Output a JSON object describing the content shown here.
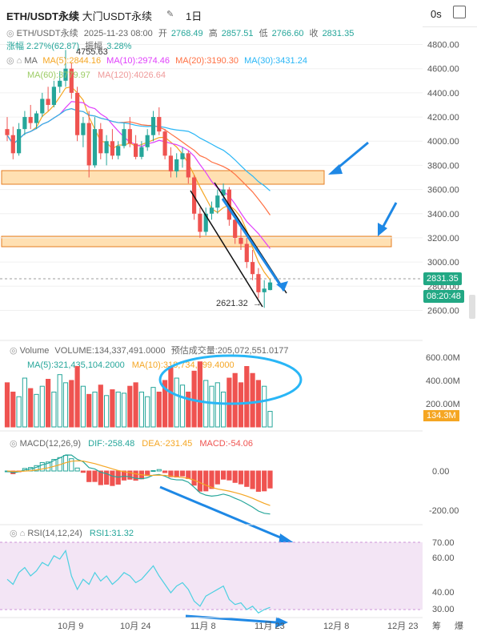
{
  "header": {
    "symbol": "ETH/USDT永续",
    "market": "大门USDT永续",
    "interval": "1日",
    "timer": "0s"
  },
  "ohlc": {
    "symbol": "ETH/USDT永续",
    "date": "2025-11-23 08:00",
    "open_label": "开",
    "open": "2768.49",
    "high_label": "高",
    "high": "2857.51",
    "low_label": "低",
    "low": "2766.60",
    "close_label": "收",
    "close": "2831.35",
    "change": "涨幅 2.27%(62.87)",
    "amplitude_label": "振幅",
    "amplitude": "3.28%"
  },
  "ma_legend": {
    "label": "MA",
    "ma5": "MA(5):2844.16",
    "ma10": "MA(10):2974.46",
    "ma20": "MA(20):3190.30",
    "ma30": "MA(30):3431.24",
    "ma60": "MA(60):3779.97",
    "ma120": "MA(120):4026.64"
  },
  "colors": {
    "up": "#26a69a",
    "down": "#ef5350",
    "ma5": "#f5a623",
    "ma10": "#e040fb",
    "ma20": "#ff7043",
    "ma30": "#29b6f6",
    "ma60": "#9ccc65",
    "ma120": "#ef9a9a",
    "annotation": "#1e88e5",
    "rsi_band": "#f3e5f5",
    "zone": "#ffe0b2"
  },
  "price_axis": {
    "ticks": [
      "4800.00",
      "4600.00",
      "4400.00",
      "4200.00",
      "4000.00",
      "3800.00",
      "3600.00",
      "3400.00",
      "3200.00",
      "3000.00",
      "2800.00",
      "2600.00"
    ],
    "tick_values": [
      4800,
      4600,
      4400,
      4200,
      4000,
      3800,
      3600,
      3400,
      3200,
      3000,
      2800,
      2600
    ],
    "current_price": "2831.35",
    "countdown": "08:20:48",
    "low_marker": "2621.32",
    "high_marker": "4755.63"
  },
  "volume_legend": {
    "label": "Volume",
    "volume": "VOLUME:134,337,491.0000",
    "est": "预估成交量:205,072,551.0177",
    "ma5": "MA(5):321,435,104.2000",
    "ma10": "MA(10):318,734,299.4000",
    "axis": [
      "600.00M",
      "400.00M",
      "200.00M"
    ],
    "current": "134.3M"
  },
  "macd_legend": {
    "label": "MACD(12,26,9)",
    "dif": "DIF:-258.48",
    "dea": "DEA:-231.45",
    "macd": "MACD:-54.06",
    "axis": [
      "0.00",
      "-200.00"
    ]
  },
  "rsi_legend": {
    "label": "RSI(14,12,24)",
    "rsi1": "RSI1:31.32",
    "axis": [
      "70.00",
      "60.00",
      "40.00",
      "30.00"
    ]
  },
  "time_axis": {
    "labels": [
      "10月 9",
      "10月 24",
      "11月 8",
      "11月 23",
      "12月 8",
      "12月 23"
    ],
    "right_labels": [
      "筹",
      "爆"
    ]
  },
  "chart_data": {
    "type": "candlestick",
    "price_range": [
      2550,
      4850
    ],
    "candles": [
      [
        4100,
        4200,
        4000,
        4050
      ],
      [
        4050,
        4120,
        3850,
        3900
      ],
      [
        3900,
        4150,
        3880,
        4100
      ],
      [
        4100,
        4250,
        4050,
        4200
      ],
      [
        4200,
        4300,
        4100,
        4150
      ],
      [
        4150,
        4250,
        4100,
        4230
      ],
      [
        4230,
        4400,
        4200,
        4350
      ],
      [
        4350,
        4450,
        4250,
        4300
      ],
      [
        4300,
        4500,
        4280,
        4450
      ],
      [
        4450,
        4580,
        4400,
        4500
      ],
      [
        4500,
        4755,
        4450,
        4600
      ],
      [
        4600,
        4650,
        4350,
        4400
      ],
      [
        4400,
        4450,
        4000,
        4050
      ],
      [
        4050,
        4200,
        3950,
        4150
      ],
      [
        4150,
        4250,
        3700,
        3800
      ],
      [
        3800,
        4200,
        3780,
        4100
      ],
      [
        4100,
        4150,
        3850,
        3900
      ],
      [
        3900,
        4050,
        3800,
        4000
      ],
      [
        4000,
        4100,
        3850,
        3880
      ],
      [
        3880,
        4000,
        3850,
        3960
      ],
      [
        3960,
        4150,
        3940,
        4100
      ],
      [
        4100,
        4200,
        3950,
        3980
      ],
      [
        3980,
        4050,
        3850,
        3870
      ],
      [
        3870,
        4000,
        3850,
        3950
      ],
      [
        3950,
        4100,
        3920,
        4050
      ],
      [
        4050,
        4250,
        4000,
        4200
      ],
      [
        4200,
        4280,
        4050,
        4080
      ],
      [
        4080,
        4100,
        3850,
        3880
      ],
      [
        3880,
        3950,
        3700,
        3750
      ],
      [
        3750,
        3900,
        3700,
        3850
      ],
      [
        3850,
        3950,
        3780,
        3900
      ],
      [
        3900,
        3920,
        3650,
        3700
      ],
      [
        3700,
        3720,
        3350,
        3400
      ],
      [
        3400,
        3450,
        3200,
        3250
      ],
      [
        3250,
        3450,
        3220,
        3400
      ],
      [
        3400,
        3500,
        3350,
        3450
      ],
      [
        3450,
        3600,
        3400,
        3550
      ],
      [
        3550,
        3650,
        3500,
        3600
      ],
      [
        3600,
        3620,
        3300,
        3350
      ],
      [
        3350,
        3400,
        3150,
        3200
      ],
      [
        3200,
        3300,
        3100,
        3150
      ],
      [
        3150,
        3200,
        2950,
        3000
      ],
      [
        3000,
        3100,
        2850,
        2900
      ],
      [
        2900,
        2950,
        2700,
        2750
      ],
      [
        2750,
        2850,
        2621,
        2780
      ],
      [
        2768,
        2857,
        2766,
        2831
      ]
    ],
    "volume": [
      380,
      300,
      260,
      420,
      330,
      280,
      350,
      410,
      300,
      450,
      380,
      400,
      520,
      350,
      280,
      300,
      360,
      270,
      320,
      300,
      290,
      350,
      380,
      300,
      260,
      340,
      300,
      400,
      520,
      420,
      360,
      300,
      480,
      560,
      400,
      350,
      380,
      300,
      420,
      460,
      380,
      520,
      460,
      400,
      350,
      134
    ],
    "rsi": [
      48,
      45,
      52,
      55,
      50,
      53,
      58,
      56,
      62,
      60,
      65,
      50,
      42,
      48,
      45,
      52,
      47,
      50,
      45,
      48,
      52,
      50,
      46,
      48,
      52,
      56,
      50,
      45,
      40,
      44,
      46,
      42,
      35,
      32,
      38,
      40,
      42,
      44,
      36,
      33,
      34,
      30,
      32,
      28,
      30,
      31.32
    ]
  }
}
